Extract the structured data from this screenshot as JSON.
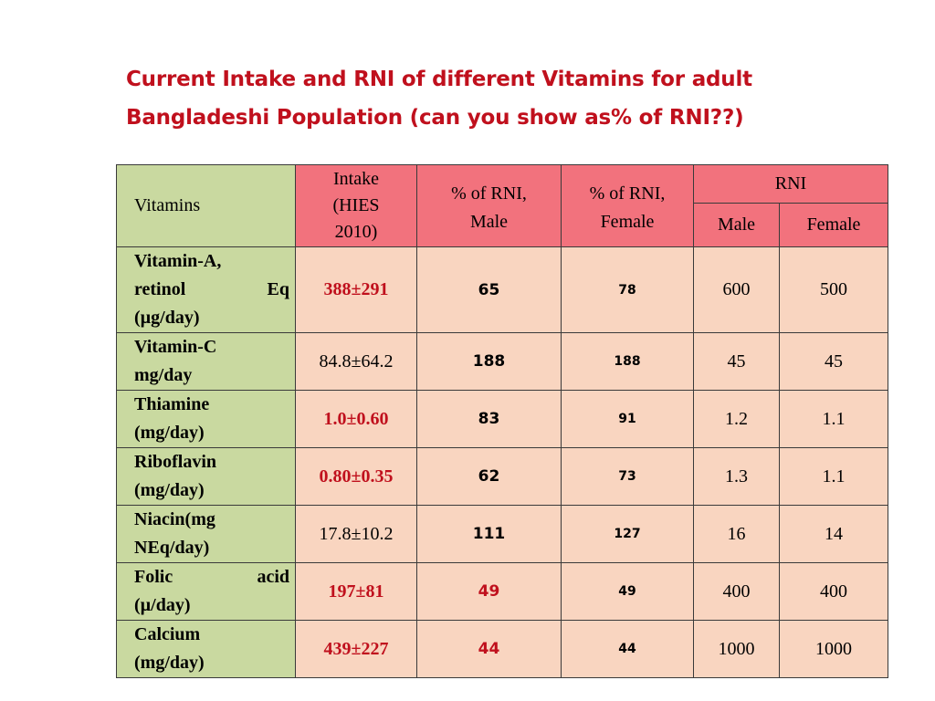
{
  "title": {
    "line1": "Current Intake and RNI of different Vitamins for adult",
    "line2": "Bangladeshi Population (can you show as% of RNI??)"
  },
  "table": {
    "headers": {
      "vitamins": "Vitamins",
      "intake_l1": "Intake",
      "intake_l2": "(HIES",
      "intake_l3": "2010)",
      "pct_male_l1": "% of RNI,",
      "pct_male_l2": "Male",
      "pct_female_l1": "% of RNI,",
      "pct_female_l2": "Female",
      "rni": "RNI",
      "rni_male": "Male",
      "rni_female": "Female"
    },
    "rows": [
      {
        "name_l1": "Vitamin-A,",
        "name_l2a": "retinol",
        "name_l2b": "Eq",
        "name_l3": "(µg/day)",
        "intake": "388±291",
        "pct_male": "65",
        "pct_female": "78",
        "rni_male": "600",
        "rni_female": "500"
      },
      {
        "name_l1": "Vitamin-C",
        "name_l2": "mg/day",
        "intake": "84.8±64.2",
        "pct_male": "188",
        "pct_female": "188",
        "rni_male": "45",
        "rni_female": "45"
      },
      {
        "name_l1": "Thiamine",
        "name_l2": "(mg/day)",
        "intake": "1.0±0.60",
        "pct_male": "83",
        "pct_female": "91",
        "rni_male": "1.2",
        "rni_female": "1.1"
      },
      {
        "name_l1": "Riboflavin",
        "name_l2": "(mg/day)",
        "intake": "0.80±0.35",
        "pct_male": "62",
        "pct_female": "73",
        "rni_male": "1.3",
        "rni_female": "1.1"
      },
      {
        "name_l1": "Niacin(mg",
        "name_l2": "NEq/day)",
        "intake": "17.8±10.2",
        "pct_male": "111",
        "pct_female": "127",
        "rni_male": "16",
        "rni_female": "14"
      },
      {
        "name_l1a": "Folic",
        "name_l1b": "acid",
        "name_l2": "(µ/day)",
        "intake": "197±81",
        "pct_male": "49",
        "pct_female": "49",
        "rni_male": "400",
        "rni_female": "400"
      },
      {
        "name_l1": "Calcium",
        "name_l2": "(mg/day)",
        "intake": "439±227",
        "pct_male": "44",
        "pct_female": "44",
        "rni_male": "1000",
        "rni_female": "1000"
      }
    ]
  },
  "colors": {
    "title_red": "#c0101d",
    "header_green": "#c9d9a0",
    "header_pink": "#f2727d",
    "cell_peach": "#f9d5c0"
  }
}
